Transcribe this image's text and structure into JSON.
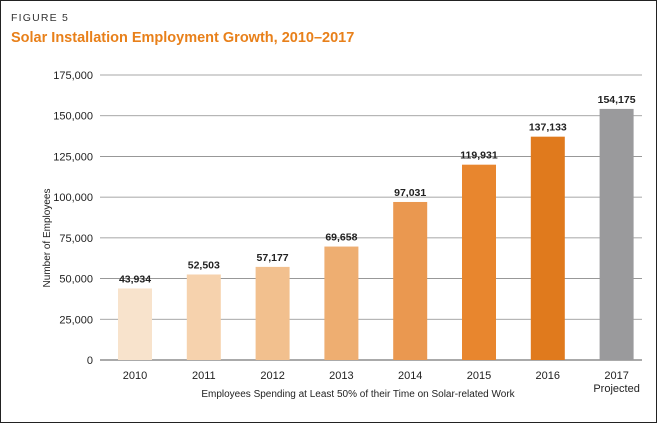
{
  "figure": {
    "label": "FIGURE 5",
    "title": "Solar Installation Employment Growth, 2010–2017"
  },
  "chart_data": {
    "type": "bar",
    "title": "Solar Installation Employment Growth, 2010–2017",
    "xlabel": "Employees Spending at Least 50% of their Time on Solar-related Work",
    "ylabel": "Number of Employees",
    "categories": [
      "2010",
      "2011",
      "2012",
      "2013",
      "2014",
      "2015",
      "2016",
      "2017"
    ],
    "category_sublabels": [
      "",
      "",
      "",
      "",
      "",
      "",
      "",
      "Projected"
    ],
    "values": [
      43934,
      52503,
      57177,
      69658,
      97031,
      119931,
      137133,
      154175
    ],
    "value_labels": [
      "43,934",
      "52,503",
      "57,177",
      "69,658",
      "97,031",
      "119,931",
      "137,133",
      "154,175"
    ],
    "bar_colors": [
      "#f8e3cc",
      "#f6d2ad",
      "#f2c08e",
      "#eeae71",
      "#ea9850",
      "#e8862e",
      "#e07a1d",
      "#9a9a9c"
    ],
    "ylim": [
      0,
      175000
    ],
    "yticks": [
      0,
      25000,
      50000,
      75000,
      100000,
      125000,
      150000,
      175000
    ],
    "ytick_labels": [
      "0",
      "25,000",
      "50,000",
      "75,000",
      "100,000",
      "125,000",
      "150,000",
      "175,000"
    ],
    "grid": true,
    "legend": "none"
  }
}
